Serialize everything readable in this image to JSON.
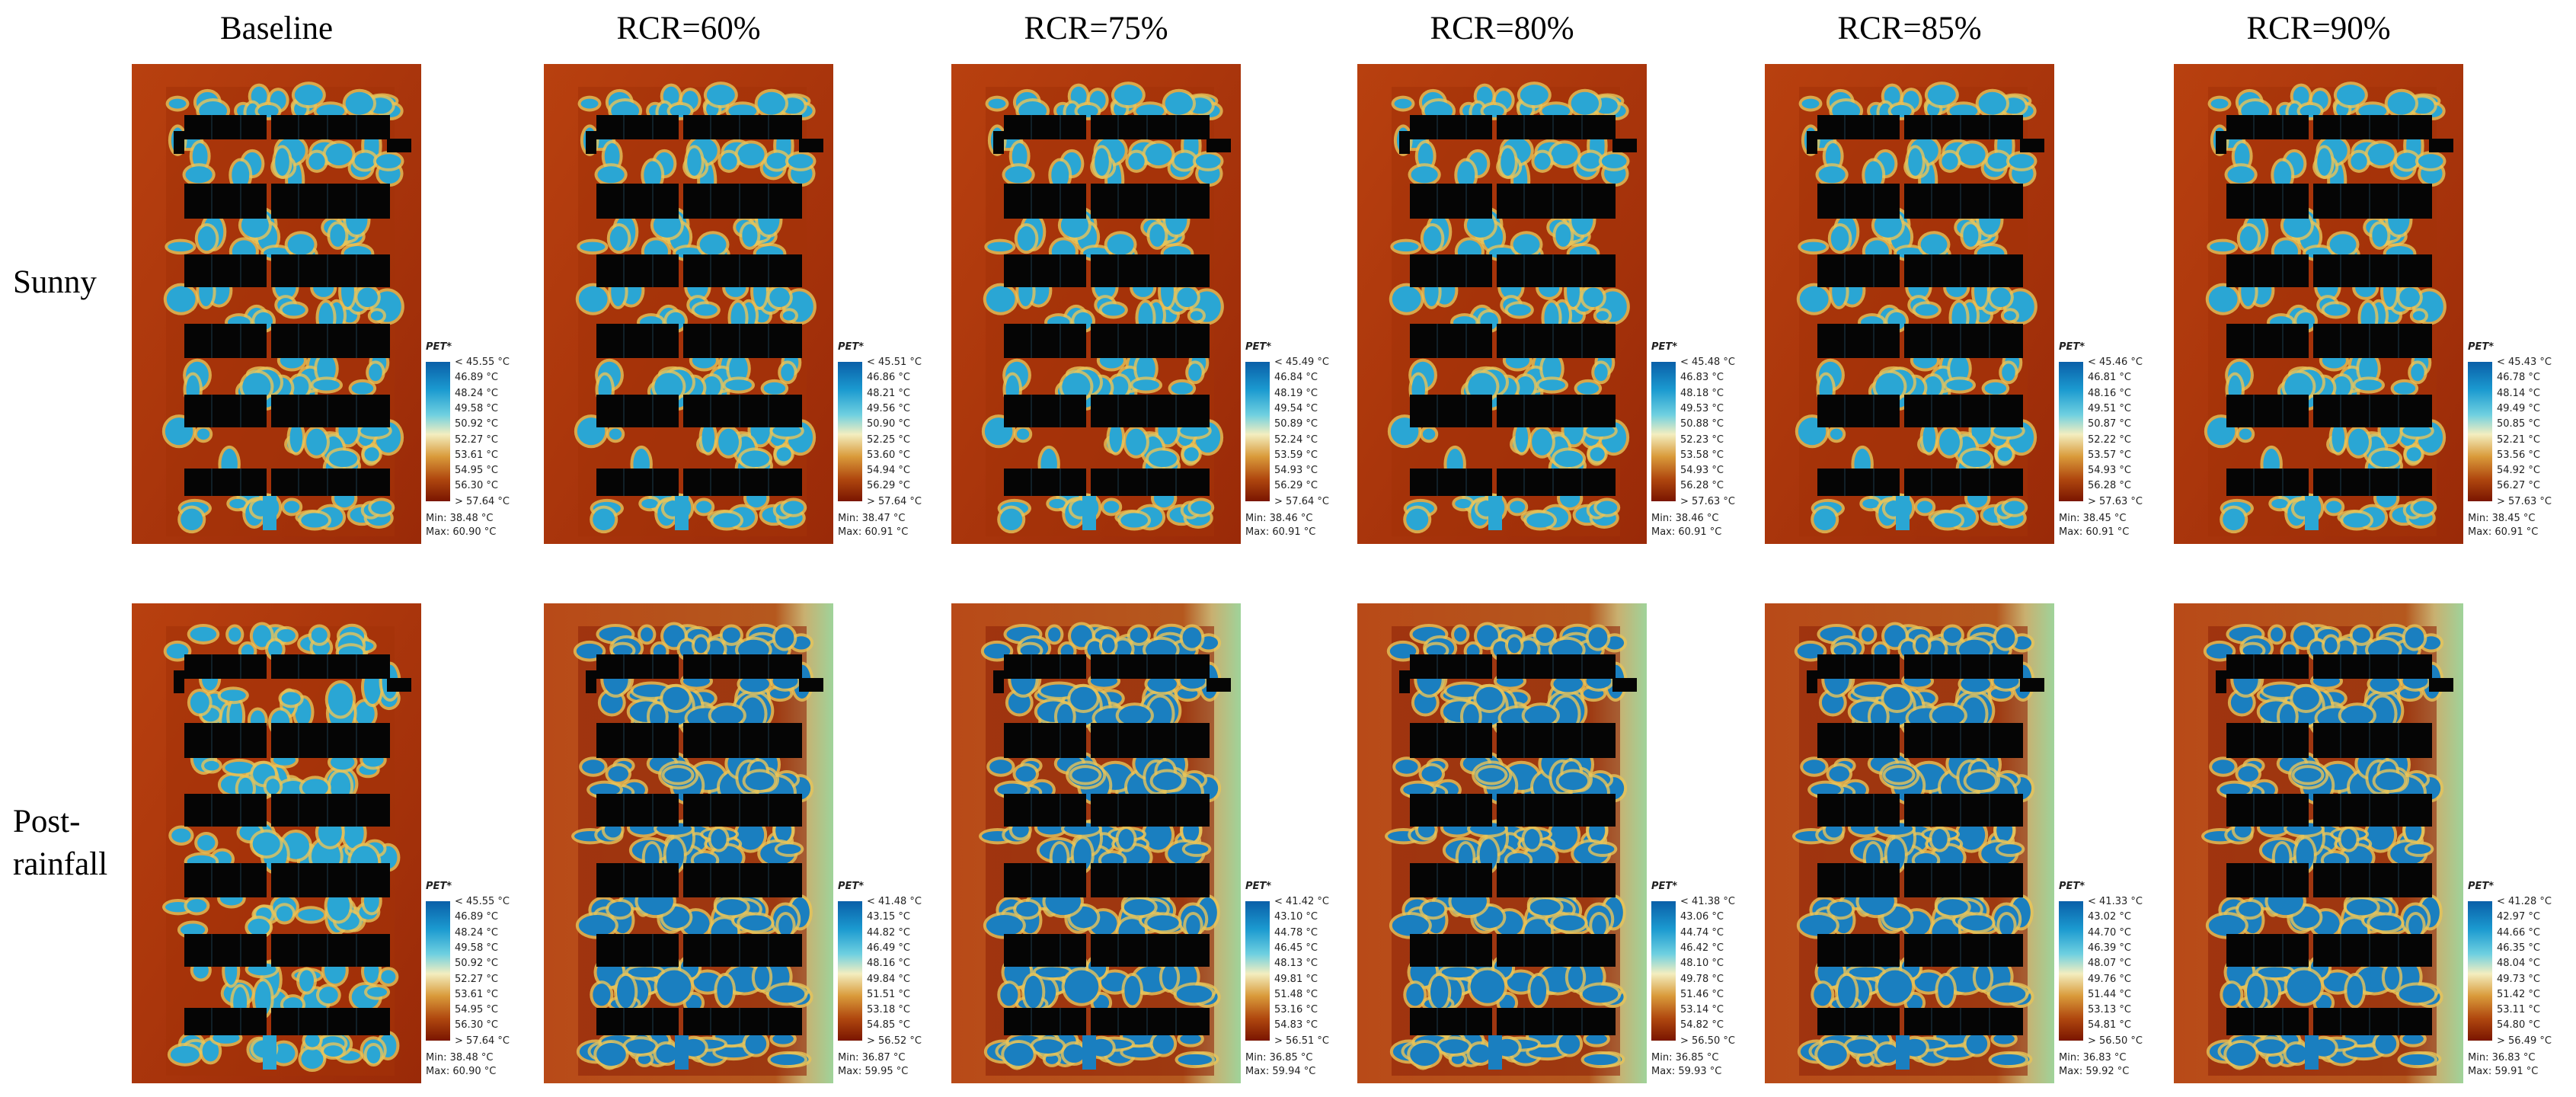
{
  "columns": [
    "Baseline",
    "RCR=60%",
    "RCR=75%",
    "RCR=80%",
    "RCR=85%",
    "RCR=90%"
  ],
  "rows": [
    {
      "label": [
        "Sunny"
      ],
      "panels": [
        {
          "legend_title": "PET*",
          "legend_labels": [
            "< 45.55 °C",
            "46.89 °C",
            "48.24 °C",
            "49.58 °C",
            "50.92 °C",
            "52.27 °C",
            "53.61 °C",
            "54.95 °C",
            "56.30 °C",
            "> 57.64 °C"
          ],
          "min": "Min: 38.48 °C",
          "max": "Max: 60.90 °C"
        },
        {
          "legend_title": "PET*",
          "legend_labels": [
            "< 45.51 °C",
            "46.86 °C",
            "48.21 °C",
            "49.56 °C",
            "50.90 °C",
            "52.25 °C",
            "53.60 °C",
            "54.94 °C",
            "56.29 °C",
            "> 57.64 °C"
          ],
          "min": "Min: 38.47 °C",
          "max": "Max: 60.91 °C"
        },
        {
          "legend_title": "PET*",
          "legend_labels": [
            "< 45.49 °C",
            "46.84 °C",
            "48.19 °C",
            "49.54 °C",
            "50.89 °C",
            "52.24 °C",
            "53.59 °C",
            "54.93 °C",
            "56.29 °C",
            "> 57.64 °C"
          ],
          "min": "Min: 38.46 °C",
          "max": "Max: 60.91 °C"
        },
        {
          "legend_title": "PET*",
          "legend_labels": [
            "< 45.48 °C",
            "46.83 °C",
            "48.18 °C",
            "49.53 °C",
            "50.88 °C",
            "52.23 °C",
            "53.58 °C",
            "54.93 °C",
            "56.28 °C",
            "> 57.63 °C"
          ],
          "min": "Min: 38.46 °C",
          "max": "Max: 60.91 °C"
        },
        {
          "legend_title": "PET*",
          "legend_labels": [
            "< 45.46 °C",
            "46.81 °C",
            "48.16 °C",
            "49.51 °C",
            "50.87 °C",
            "52.22 °C",
            "53.57 °C",
            "54.93 °C",
            "56.28 °C",
            "> 57.63 °C"
          ],
          "min": "Min: 38.45 °C",
          "max": "Max: 60.91 °C"
        },
        {
          "legend_title": "PET*",
          "legend_labels": [
            "< 45.43 °C",
            "46.78 °C",
            "48.14 °C",
            "49.49 °C",
            "50.85 °C",
            "52.21 °C",
            "53.56 °C",
            "54.92 °C",
            "56.27 °C",
            "> 57.63 °C"
          ],
          "min": "Min: 38.45 °C",
          "max": "Max: 60.91 °C"
        }
      ]
    },
    {
      "label": [
        "Post-",
        "rainfall"
      ],
      "panels": [
        {
          "legend_title": "PET*",
          "legend_labels": [
            "< 45.55 °C",
            "46.89 °C",
            "48.24 °C",
            "49.58 °C",
            "50.92 °C",
            "52.27 °C",
            "53.61 °C",
            "54.95 °C",
            "56.30 °C",
            "> 57.64 °C"
          ],
          "min": "Min: 38.48 °C",
          "max": "Max: 60.90 °C"
        },
        {
          "legend_title": "PET*",
          "legend_labels": [
            "< 41.48 °C",
            "43.15 °C",
            "44.82 °C",
            "46.49 °C",
            "48.16 °C",
            "49.84 °C",
            "51.51 °C",
            "53.18 °C",
            "54.85 °C",
            "> 56.52 °C"
          ],
          "min": "Min: 36.87 °C",
          "max": "Max: 59.95 °C"
        },
        {
          "legend_title": "PET*",
          "legend_labels": [
            "< 41.42 °C",
            "43.10 °C",
            "44.78 °C",
            "46.45 °C",
            "48.13 °C",
            "49.81 °C",
            "51.48 °C",
            "53.16 °C",
            "54.83 °C",
            "> 56.51 °C"
          ],
          "min": "Min: 36.85 °C",
          "max": "Max: 59.94 °C"
        },
        {
          "legend_title": "PET*",
          "legend_labels": [
            "< 41.38 °C",
            "43.06 °C",
            "44.74 °C",
            "46.42 °C",
            "48.10 °C",
            "49.78 °C",
            "51.46 °C",
            "53.14 °C",
            "54.82 °C",
            "> 56.50 °C"
          ],
          "min": "Min: 36.85 °C",
          "max": "Max: 59.93 °C"
        },
        {
          "legend_title": "PET*",
          "legend_labels": [
            "< 41.33 °C",
            "43.02 °C",
            "44.70 °C",
            "46.39 °C",
            "48.07 °C",
            "49.76 °C",
            "51.44 °C",
            "53.13 °C",
            "54.81 °C",
            "> 56.50 °C"
          ],
          "min": "Min: 36.83 °C",
          "max": "Max: 59.92 °C"
        },
        {
          "legend_title": "PET*",
          "legend_labels": [
            "< 41.28 °C",
            "42.97 °C",
            "44.66 °C",
            "46.35 °C",
            "48.04 °C",
            "49.73 °C",
            "51.42 °C",
            "53.11 °C",
            "54.80 °C",
            "> 56.49 °C"
          ],
          "min": "Min: 36.83 °C",
          "max": "Max: 59.91 °C"
        }
      ]
    }
  ]
}
